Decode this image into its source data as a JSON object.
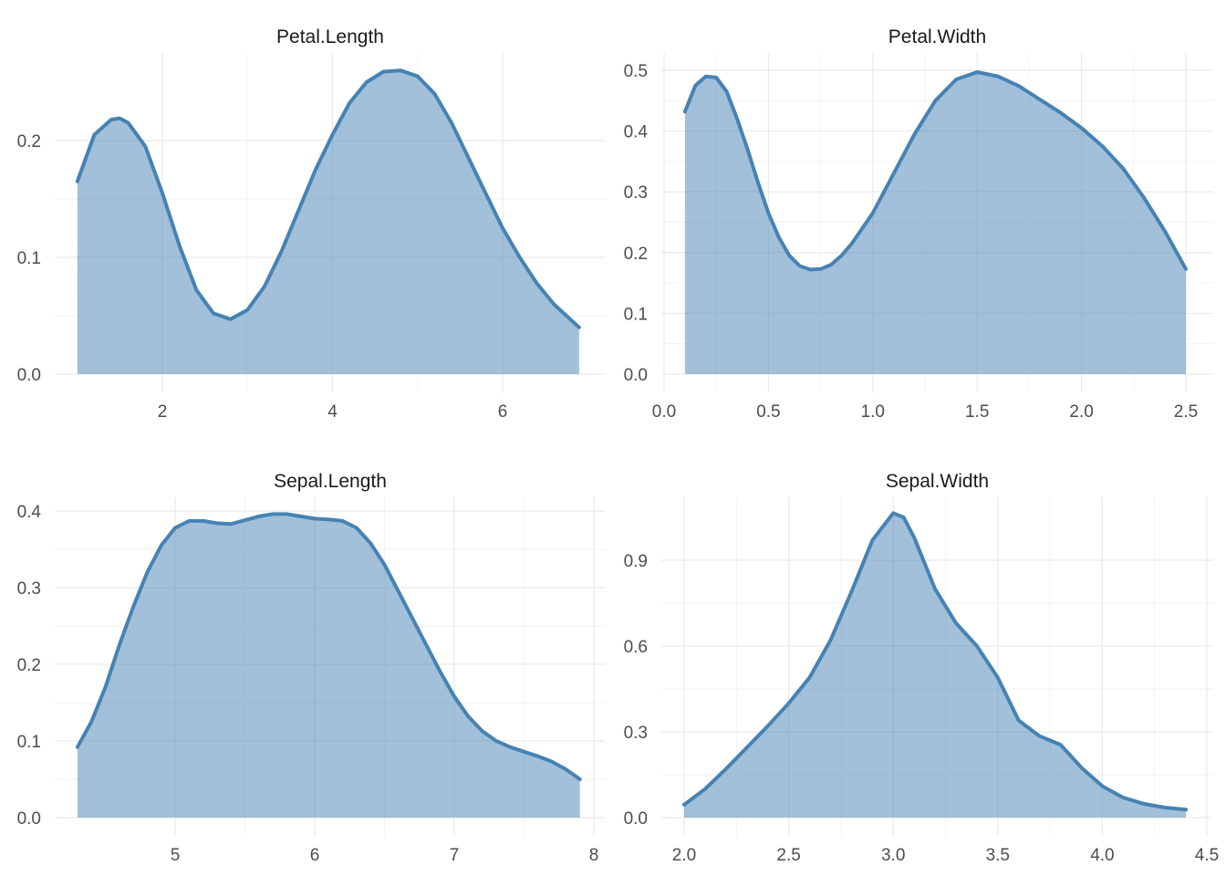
{
  "style": {
    "fill_color": "#4682b4",
    "fill_opacity": 0.5,
    "line_color": "#4682b4"
  },
  "chart_data": [
    {
      "type": "area",
      "title": "Petal.Length",
      "xlabel": "",
      "ylabel": "",
      "xlim": [
        1,
        6.9
      ],
      "ylim": [
        0,
        0.26
      ],
      "xticks": [
        2,
        4,
        6
      ],
      "xtick_labels": [
        "2",
        "4",
        "6"
      ],
      "yticks": [
        0,
        0.1,
        0.2
      ],
      "ytick_labels": [
        "0.0",
        "0.1",
        "0.2"
      ],
      "grid": true,
      "x": [
        1.0,
        1.2,
        1.4,
        1.5,
        1.6,
        1.8,
        2.0,
        2.2,
        2.4,
        2.6,
        2.8,
        3.0,
        3.2,
        3.4,
        3.6,
        3.8,
        4.0,
        4.2,
        4.4,
        4.6,
        4.8,
        5.0,
        5.2,
        5.4,
        5.6,
        5.8,
        6.0,
        6.2,
        6.4,
        6.6,
        6.9
      ],
      "y": [
        0.165,
        0.205,
        0.218,
        0.219,
        0.215,
        0.195,
        0.155,
        0.11,
        0.072,
        0.052,
        0.047,
        0.055,
        0.075,
        0.105,
        0.14,
        0.175,
        0.205,
        0.232,
        0.25,
        0.259,
        0.26,
        0.255,
        0.24,
        0.215,
        0.185,
        0.155,
        0.125,
        0.1,
        0.078,
        0.06,
        0.04
      ]
    },
    {
      "type": "area",
      "title": "Petal.Width",
      "xlabel": "",
      "ylabel": "",
      "xlim": [
        0.1,
        2.5
      ],
      "ylim": [
        0,
        0.5
      ],
      "xticks": [
        0.0,
        0.5,
        1.0,
        1.5,
        2.0,
        2.5
      ],
      "xtick_labels": [
        "0.0",
        "0.5",
        "1.0",
        "1.5",
        "2.0",
        "2.5"
      ],
      "yticks": [
        0,
        0.1,
        0.2,
        0.3,
        0.4,
        0.5
      ],
      "ytick_labels": [
        "0.0",
        "0.1",
        "0.2",
        "0.3",
        "0.4",
        "0.5"
      ],
      "grid": true,
      "x": [
        0.1,
        0.15,
        0.2,
        0.25,
        0.3,
        0.35,
        0.4,
        0.45,
        0.5,
        0.55,
        0.6,
        0.65,
        0.7,
        0.75,
        0.8,
        0.85,
        0.9,
        1.0,
        1.1,
        1.2,
        1.3,
        1.4,
        1.5,
        1.6,
        1.7,
        1.8,
        1.9,
        2.0,
        2.1,
        2.2,
        2.3,
        2.4,
        2.5
      ],
      "y": [
        0.432,
        0.475,
        0.49,
        0.488,
        0.465,
        0.42,
        0.37,
        0.315,
        0.265,
        0.225,
        0.195,
        0.178,
        0.172,
        0.173,
        0.18,
        0.195,
        0.215,
        0.265,
        0.33,
        0.395,
        0.45,
        0.485,
        0.497,
        0.49,
        0.474,
        0.452,
        0.43,
        0.405,
        0.375,
        0.338,
        0.29,
        0.235,
        0.173
      ]
    },
    {
      "type": "area",
      "title": "Sepal.Length",
      "xlabel": "",
      "ylabel": "",
      "xlim": [
        4.3,
        7.9
      ],
      "ylim": [
        0,
        0.4
      ],
      "xticks": [
        5,
        6,
        7,
        8
      ],
      "xtick_labels": [
        "5",
        "6",
        "7",
        "8"
      ],
      "yticks": [
        0,
        0.1,
        0.2,
        0.3,
        0.4
      ],
      "ytick_labels": [
        "0.0",
        "0.1",
        "0.2",
        "0.3",
        "0.4"
      ],
      "grid": true,
      "x": [
        4.3,
        4.4,
        4.5,
        4.6,
        4.7,
        4.8,
        4.9,
        5.0,
        5.1,
        5.2,
        5.3,
        5.4,
        5.5,
        5.6,
        5.7,
        5.8,
        5.9,
        6.0,
        6.1,
        6.2,
        6.3,
        6.4,
        6.5,
        6.6,
        6.7,
        6.8,
        6.9,
        7.0,
        7.1,
        7.2,
        7.3,
        7.4,
        7.5,
        7.6,
        7.7,
        7.8,
        7.9
      ],
      "y": [
        0.092,
        0.125,
        0.17,
        0.225,
        0.275,
        0.32,
        0.355,
        0.378,
        0.387,
        0.387,
        0.384,
        0.383,
        0.388,
        0.393,
        0.396,
        0.396,
        0.393,
        0.39,
        0.389,
        0.387,
        0.378,
        0.358,
        0.33,
        0.295,
        0.26,
        0.225,
        0.19,
        0.158,
        0.132,
        0.113,
        0.1,
        0.092,
        0.086,
        0.08,
        0.073,
        0.063,
        0.05
      ]
    },
    {
      "type": "area",
      "title": "Sepal.Width",
      "xlabel": "",
      "ylabel": "",
      "xlim": [
        2.0,
        4.4
      ],
      "ylim": [
        0,
        1.07
      ],
      "xticks": [
        2.0,
        2.5,
        3.0,
        3.5,
        4.0,
        4.5
      ],
      "xtick_labels": [
        "2.0",
        "2.5",
        "3.0",
        "3.5",
        "4.0",
        "4.5"
      ],
      "yticks": [
        0,
        0.3,
        0.6,
        0.9
      ],
      "ytick_labels": [
        "0.0",
        "0.3",
        "0.6",
        "0.9"
      ],
      "grid": true,
      "x": [
        2.0,
        2.1,
        2.2,
        2.3,
        2.4,
        2.5,
        2.6,
        2.7,
        2.8,
        2.9,
        3.0,
        3.05,
        3.1,
        3.2,
        3.3,
        3.4,
        3.5,
        3.6,
        3.7,
        3.8,
        3.9,
        4.0,
        4.1,
        4.2,
        4.3,
        4.4
      ],
      "y": [
        0.045,
        0.1,
        0.17,
        0.245,
        0.32,
        0.4,
        0.49,
        0.62,
        0.79,
        0.97,
        1.065,
        1.05,
        0.98,
        0.8,
        0.68,
        0.6,
        0.49,
        0.34,
        0.285,
        0.255,
        0.175,
        0.11,
        0.07,
        0.048,
        0.035,
        0.028
      ]
    }
  ]
}
